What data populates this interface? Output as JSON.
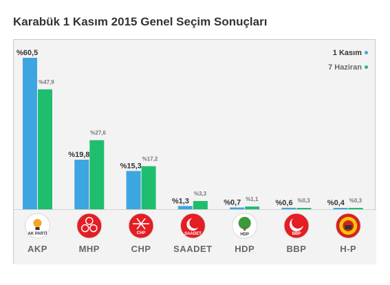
{
  "title": "Karabük 1 Kasım 2015 Genel Seçim Sonuçları",
  "chart_data": {
    "type": "bar",
    "categories": [
      "AKP",
      "MHP",
      "CHP",
      "SAADET",
      "HDP",
      "BBP",
      "H-P"
    ],
    "series": [
      {
        "name": "1 Kasım",
        "color": "#3da5e0",
        "values": [
          60.5,
          19.8,
          15.3,
          1.3,
          0.7,
          0.6,
          0.4
        ],
        "labels": [
          "%60,5",
          "%19,8",
          "%15,3",
          "%1,3",
          "%0,7",
          "%0,6",
          "%0,4"
        ]
      },
      {
        "name": "7 Haziran",
        "color": "#1fbd6e",
        "values": [
          47.9,
          27.6,
          17.2,
          3.3,
          1.1,
          0.3,
          0.3
        ],
        "labels": [
          "%47,9",
          "%27,6",
          "%17,2",
          "%3,3",
          "%1,1",
          "%0,3",
          "%0,3"
        ]
      }
    ],
    "ylim": [
      0,
      60.5
    ],
    "legend_position": "top-right",
    "grid": false
  },
  "logos": [
    {
      "party": "AKP",
      "icon": "akp-bulb-logo-icon",
      "bg": "#ffffff",
      "accent": "#f5a623",
      "caption": "AK PARTİ"
    },
    {
      "party": "MHP",
      "icon": "mhp-crescents-logo-icon",
      "bg": "#e31e24",
      "accent": "#ffffff",
      "caption": ""
    },
    {
      "party": "CHP",
      "icon": "chp-arrows-logo-icon",
      "bg": "#e31e24",
      "accent": "#ffffff",
      "caption": "CHP"
    },
    {
      "party": "SAADET",
      "icon": "saadet-crescent-logo-icon",
      "bg": "#e31e24",
      "accent": "#ffffff",
      "caption": "SAADET"
    },
    {
      "party": "HDP",
      "icon": "hdp-tree-logo-icon",
      "bg": "#ffffff",
      "accent": "#3a9a3a",
      "caption": "HDP"
    },
    {
      "party": "BBP",
      "icon": "bbp-crescent-logo-icon",
      "bg": "#e31e24",
      "accent": "#ffffff",
      "caption": "BBP"
    },
    {
      "party": "H-P",
      "icon": "hp-sun-logo-icon",
      "bg": "#d62027",
      "accent": "#f7c600",
      "caption": ""
    }
  ]
}
